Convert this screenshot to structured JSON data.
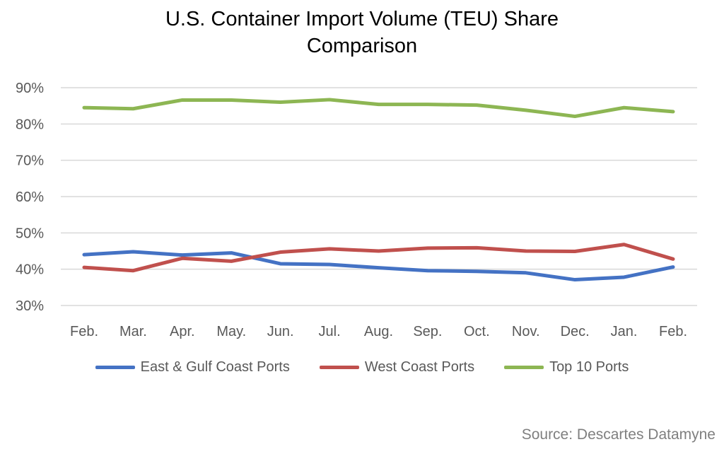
{
  "chart_data": {
    "type": "line",
    "title": "U.S. Container Import Volume (TEU) Share Comparison",
    "title_lines": [
      "U.S. Container Import Volume (TEU) Share",
      "Comparison"
    ],
    "categories": [
      "Feb.",
      "Mar.",
      "Apr.",
      "May.",
      "Jun.",
      "Jul.",
      "Aug.",
      "Sep.",
      "Oct.",
      "Nov.",
      "Dec.",
      "Jan.",
      "Feb."
    ],
    "ylim": [
      30,
      90
    ],
    "yticks": [
      30,
      40,
      50,
      60,
      70,
      80,
      90
    ],
    "ytick_labels": [
      "30%",
      "40%",
      "50%",
      "60%",
      "70%",
      "80%",
      "90%"
    ],
    "grid": true,
    "legend_placement": "bottom",
    "series": [
      {
        "name": "East & Gulf Coast Ports",
        "color": "#4472C4",
        "values": [
          44.0,
          44.8,
          43.9,
          44.5,
          41.5,
          41.3,
          40.4,
          39.6,
          39.4,
          39.0,
          37.1,
          37.8,
          40.6
        ]
      },
      {
        "name": "West Coast Ports",
        "color": "#C0504D",
        "values": [
          40.5,
          39.6,
          43.0,
          42.2,
          44.7,
          45.6,
          45.0,
          45.8,
          45.9,
          45.0,
          44.9,
          46.8,
          42.8
        ]
      },
      {
        "name": "Top 10 Ports",
        "color": "#8DB653",
        "values": [
          84.5,
          84.2,
          86.6,
          86.6,
          86.0,
          86.7,
          85.4,
          85.4,
          85.2,
          83.8,
          82.1,
          84.5,
          83.4
        ]
      }
    ]
  },
  "source": "Source: Descartes Datamyne"
}
